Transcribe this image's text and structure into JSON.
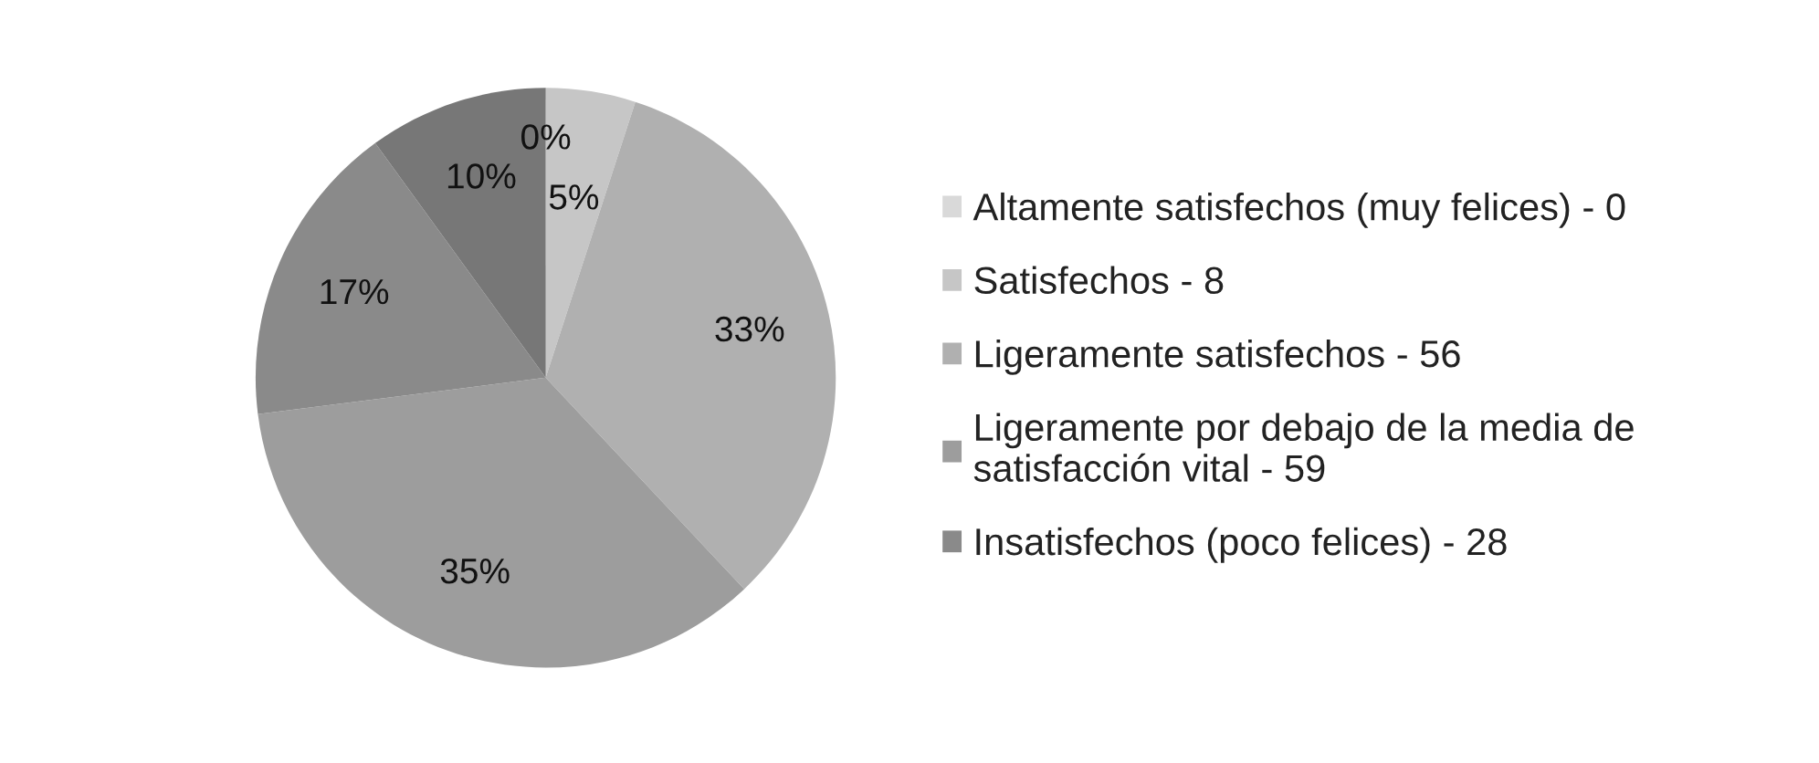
{
  "chart_data": {
    "type": "pie",
    "categories": [
      "Altamente satisfechos (muy felices) - 0",
      "Satisfechos - 8",
      "Ligeramente satisfechos - 56",
      "Ligeramente por debajo de la media de satisfacción vital - 59",
      "Insatisfechos (poco felices) - 28",
      null
    ],
    "values": [
      0,
      5,
      33,
      35,
      17,
      10
    ],
    "value_labels": [
      "0%",
      "5%",
      "33%",
      "35%",
      "17%",
      "10%"
    ],
    "colors": [
      "#d9d9d9",
      "#c6c6c6",
      "#b0b0b0",
      "#9d9d9d",
      "#8a8a8a",
      "#777777"
    ],
    "legend": "right"
  }
}
